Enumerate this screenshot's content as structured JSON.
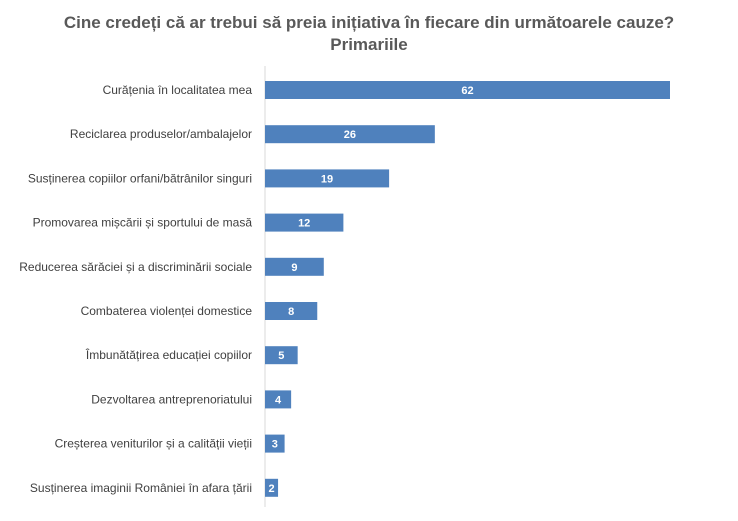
{
  "chart_data": {
    "type": "bar",
    "orientation": "horizontal",
    "title": "Cine credeți că ar trebui să preia inițiativa în fiecare din următoarele cauze?",
    "subtitle": "Primariile",
    "categories": [
      "Curățenia în localitatea mea",
      "Reciclarea produselor/ambalajelor",
      "Susținerea copiilor orfani/bătrânilor singuri",
      "Promovarea mișcării și sportului de masă",
      "Reducerea sărăciei și a discriminării sociale",
      "Combaterea violenței domestice",
      "Îmbunătățirea educației copiilor",
      "Dezvoltarea antreprenoriatului",
      "Creșterea veniturilor și a calității vieții",
      "Susținerea imaginii României în afara țării"
    ],
    "values": [
      62,
      26,
      19,
      12,
      9,
      8,
      5,
      4,
      3,
      2
    ],
    "xlim": [
      0,
      62
    ],
    "grid": false,
    "data_labels": true,
    "bar_color": "#4F81BD",
    "label_color": "#FFFFFF"
  }
}
